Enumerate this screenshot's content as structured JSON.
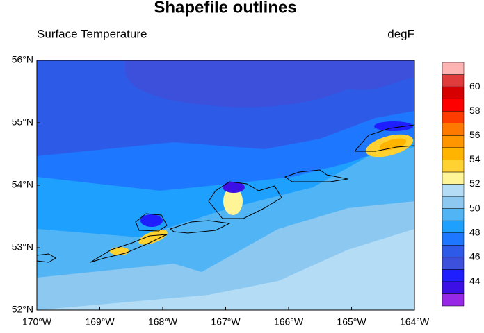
{
  "chart_data": {
    "type": "contour_map",
    "title": "Shapefile outlines",
    "subtitle_left": "Surface Temperature",
    "subtitle_right": "degF",
    "xlim": [
      -170,
      -164
    ],
    "xticks": [
      {
        "value": -170,
        "label": "170°W"
      },
      {
        "value": -169,
        "label": "169°W"
      },
      {
        "value": -168,
        "label": "168°W"
      },
      {
        "value": -167,
        "label": "167°W"
      },
      {
        "value": -166,
        "label": "166°W"
      },
      {
        "value": -165,
        "label": "165°W"
      },
      {
        "value": -164,
        "label": "164°W"
      }
    ],
    "ylim": [
      52,
      56
    ],
    "yticks": [
      {
        "value": 52,
        "label": "52°N"
      },
      {
        "value": 53,
        "label": "53°N"
      },
      {
        "value": 54,
        "label": "54°N"
      },
      {
        "value": 55,
        "label": "55°N"
      },
      {
        "value": 56,
        "label": "56°N"
      }
    ],
    "colorbar": {
      "levels": [
        43,
        44,
        45,
        46,
        47,
        48,
        49,
        50,
        51,
        52,
        53,
        54,
        55,
        56,
        57,
        58,
        59,
        60,
        61
      ],
      "ticks": [
        44,
        46,
        48,
        50,
        52,
        54,
        56,
        58,
        60
      ],
      "colors": [
        "#9628e6",
        "#3c0fe6",
        "#1e1eff",
        "#3c50dc",
        "#2d5ae6",
        "#1e78ff",
        "#1ea0ff",
        "#50b4f5",
        "#8cc8f0",
        "#b4dcf5",
        "#fff596",
        "#ffd232",
        "#ffb400",
        "#ff9600",
        "#ff7800",
        "#ff3c00",
        "#ff0000",
        "#d70000",
        "#e03c3c",
        "#ffb4b4"
      ]
    }
  }
}
